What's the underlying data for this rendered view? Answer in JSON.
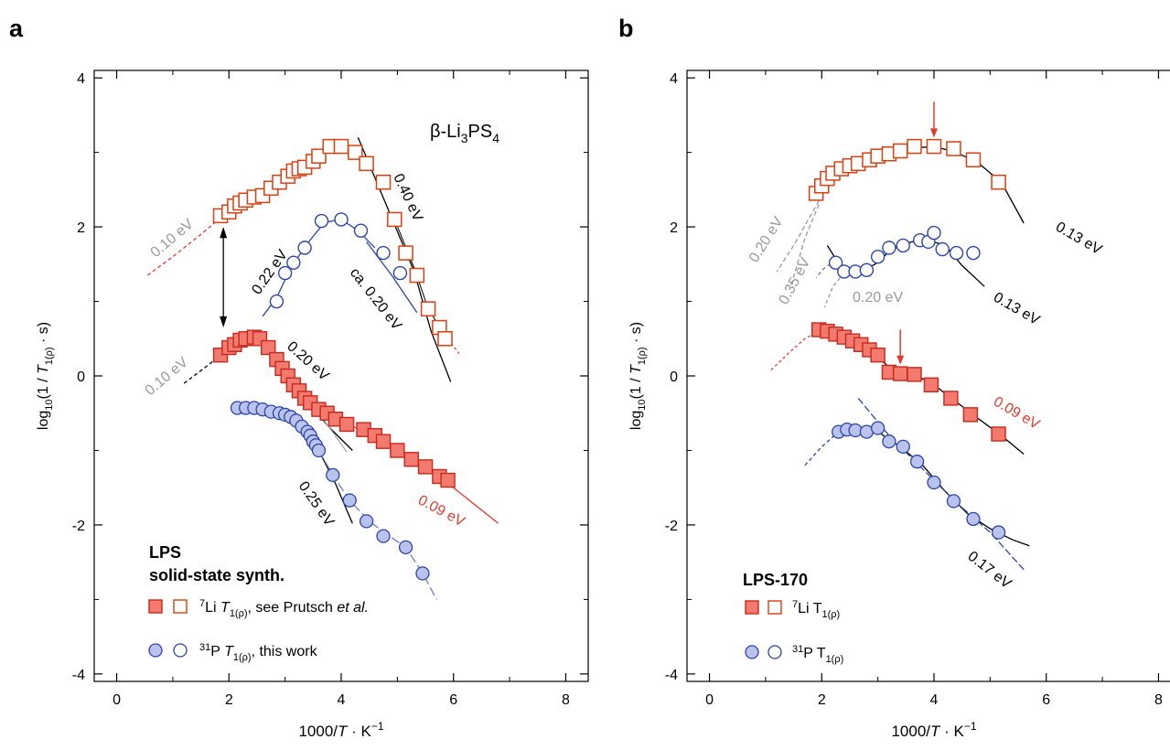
{
  "figure": {
    "panel_labels": [
      "a",
      "b"
    ]
  },
  "chart_data": [
    {
      "panel": "a",
      "type": "scatter",
      "xlabel": "1000/T · K⁻¹",
      "ylabel": "log10(1/T1(ρ)·s)",
      "xlim": [
        -0.4,
        8.4
      ],
      "ylim": [
        -4.1,
        4.1
      ],
      "xticks": [
        "0",
        "2",
        "4",
        "6",
        "8"
      ],
      "yticks": [
        "4",
        "2",
        "0",
        "-2",
        "-4"
      ],
      "compound": "β-Li3PS4",
      "legend": {
        "title": "LPS",
        "subtitle": "solid-state synth.",
        "entries": [
          {
            "nucleus": "7",
            "label": "Li T1(ρ), see Prutsch et al.",
            "color": "#e23b2e"
          },
          {
            "nucleus": "31",
            "label": "P T1(ρ), this work",
            "color": "#2c45a8"
          }
        ]
      },
      "series": [
        {
          "name": "Li T1ρ (rotating frame)",
          "marker": "open-square",
          "color": "#d94010",
          "x": [
            1.85,
            2.0,
            2.1,
            2.2,
            2.3,
            2.45,
            2.6,
            2.75,
            2.9,
            3.05,
            3.15,
            3.25,
            3.35,
            3.5,
            3.6,
            3.8,
            4.0,
            4.25,
            4.45,
            4.75,
            4.95,
            5.15,
            5.35,
            5.55,
            5.75,
            5.85
          ],
          "y": [
            2.15,
            2.2,
            2.28,
            2.32,
            2.36,
            2.4,
            2.42,
            2.52,
            2.6,
            2.68,
            2.75,
            2.78,
            2.8,
            2.88,
            2.95,
            3.08,
            3.08,
            3.0,
            2.85,
            2.6,
            2.1,
            1.65,
            1.35,
            0.9,
            0.65,
            0.5
          ]
        },
        {
          "name": "Li T1 (lab frame)",
          "marker": "filled-square",
          "color": "#e23b2e",
          "x": [
            1.85,
            2.0,
            2.1,
            2.2,
            2.3,
            2.45,
            2.55,
            2.7,
            2.85,
            2.95,
            3.05,
            3.15,
            3.25,
            3.35,
            3.45,
            3.6,
            3.75,
            3.9,
            4.1,
            4.4,
            4.6,
            4.75,
            5.0,
            5.25,
            5.5,
            5.75,
            5.9
          ],
          "y": [
            0.28,
            0.38,
            0.42,
            0.48,
            0.5,
            0.52,
            0.5,
            0.38,
            0.22,
            0.1,
            0.0,
            -0.12,
            -0.2,
            -0.3,
            -0.36,
            -0.45,
            -0.5,
            -0.58,
            -0.65,
            -0.72,
            -0.8,
            -0.88,
            -1.0,
            -1.12,
            -1.22,
            -1.35,
            -1.4
          ]
        },
        {
          "name": "P T1ρ (rotating frame)",
          "marker": "open-circle",
          "color": "#2c45a8",
          "x": [
            2.85,
            3.0,
            3.15,
            3.35,
            3.65,
            4.0,
            4.35,
            4.75,
            5.05
          ],
          "y": [
            1.0,
            1.38,
            1.52,
            1.72,
            2.08,
            2.1,
            1.95,
            1.65,
            1.38
          ]
        },
        {
          "name": "P T1 (lab frame)",
          "marker": "filled-circle",
          "color": "#2c45a8",
          "x": [
            2.15,
            2.3,
            2.45,
            2.6,
            2.75,
            2.9,
            3.0,
            3.1,
            3.2,
            3.3,
            3.4,
            3.45,
            3.5,
            3.55,
            3.6,
            3.85,
            4.15,
            4.45,
            4.75,
            5.15,
            5.45
          ],
          "y": [
            -0.43,
            -0.43,
            -0.43,
            -0.45,
            -0.48,
            -0.5,
            -0.52,
            -0.55,
            -0.6,
            -0.68,
            -0.75,
            -0.8,
            -0.88,
            -0.93,
            -1.0,
            -1.33,
            -1.67,
            -1.95,
            -2.15,
            -2.3,
            -2.65
          ]
        }
      ],
      "annotations": [
        {
          "text": "0.10 eV",
          "color": "#999999"
        },
        {
          "text": "0.22 eV",
          "color": "#000000"
        },
        {
          "text": "ca. 0.20 eV",
          "color": "#000000"
        },
        {
          "text": "0.40 eV",
          "color": "#000000"
        },
        {
          "text": "0.10 eV",
          "color": "#999999"
        },
        {
          "text": "0.20 eV",
          "color": "#000000"
        },
        {
          "text": "0.25 eV",
          "color": "#000000"
        },
        {
          "text": "0.09 eV",
          "color": "#e23b2e"
        }
      ]
    },
    {
      "panel": "b",
      "type": "scatter",
      "xlabel": "1000/T · K⁻¹",
      "ylabel": "log10(1/T1(ρ)·s)",
      "xlim": [
        -0.4,
        8.4
      ],
      "ylim": [
        -4.1,
        4.1
      ],
      "xticks": [
        "0",
        "2",
        "4",
        "6",
        "8"
      ],
      "yticks": [
        "4",
        "2",
        "0",
        "-2",
        "-4"
      ],
      "legend": {
        "title": "LPS-170",
        "entries": [
          {
            "nucleus": "7",
            "label": "Li T1(ρ)",
            "color": "#e23b2e"
          },
          {
            "nucleus": "31",
            "label": "P T1(ρ)",
            "color": "#2c45a8"
          }
        ]
      },
      "series": [
        {
          "name": "Li T1ρ (rotating frame)",
          "marker": "open-square",
          "color": "#d94010",
          "x": [
            1.9,
            2.0,
            2.1,
            2.2,
            2.35,
            2.5,
            2.65,
            2.85,
            3.0,
            3.2,
            3.4,
            3.65,
            4.0,
            4.35,
            4.7,
            5.15
          ],
          "y": [
            2.45,
            2.55,
            2.65,
            2.72,
            2.78,
            2.82,
            2.85,
            2.9,
            2.95,
            2.98,
            3.02,
            3.08,
            3.08,
            3.05,
            2.9,
            2.6
          ]
        },
        {
          "name": "Li T1 (lab frame)",
          "marker": "filled-square",
          "color": "#e23b2e",
          "x": [
            1.95,
            2.1,
            2.25,
            2.4,
            2.55,
            2.7,
            2.85,
            3.0,
            3.2,
            3.4,
            3.65,
            3.95,
            4.3,
            4.65,
            5.15
          ],
          "y": [
            0.62,
            0.6,
            0.56,
            0.52,
            0.47,
            0.42,
            0.35,
            0.28,
            0.05,
            0.03,
            0.02,
            -0.12,
            -0.3,
            -0.52,
            -0.78
          ]
        },
        {
          "name": "P T1ρ (rotating frame)",
          "marker": "open-circle",
          "color": "#2c45a8",
          "x": [
            2.25,
            2.4,
            2.6,
            2.8,
            3.0,
            3.2,
            3.45,
            3.75,
            3.9,
            4.0,
            4.15,
            4.4,
            4.7
          ],
          "y": [
            1.52,
            1.4,
            1.4,
            1.42,
            1.6,
            1.72,
            1.75,
            1.82,
            1.8,
            1.92,
            1.7,
            1.65,
            1.65
          ]
        },
        {
          "name": "P T1 (lab frame)",
          "marker": "filled-circle",
          "color": "#2c45a8",
          "x": [
            2.3,
            2.45,
            2.6,
            2.8,
            3.0,
            3.2,
            3.45,
            3.7,
            4.0,
            4.35,
            4.7,
            5.15
          ],
          "y": [
            -0.75,
            -0.72,
            -0.73,
            -0.75,
            -0.7,
            -0.88,
            -0.95,
            -1.15,
            -1.43,
            -1.68,
            -1.92,
            -2.1
          ]
        }
      ],
      "annotations": [
        {
          "text": "0.20 eV",
          "color": "#999999"
        },
        {
          "text": "0.35 eV",
          "color": "#999999"
        },
        {
          "text": "0.20 eV",
          "color": "#999999"
        },
        {
          "text": "0.13 eV",
          "color": "#000000"
        },
        {
          "text": "0.13 eV",
          "color": "#000000"
        },
        {
          "text": "0.09 eV",
          "color": "#e23b2e"
        },
        {
          "text": "0.17 eV",
          "color": "#000000"
        }
      ]
    }
  ]
}
